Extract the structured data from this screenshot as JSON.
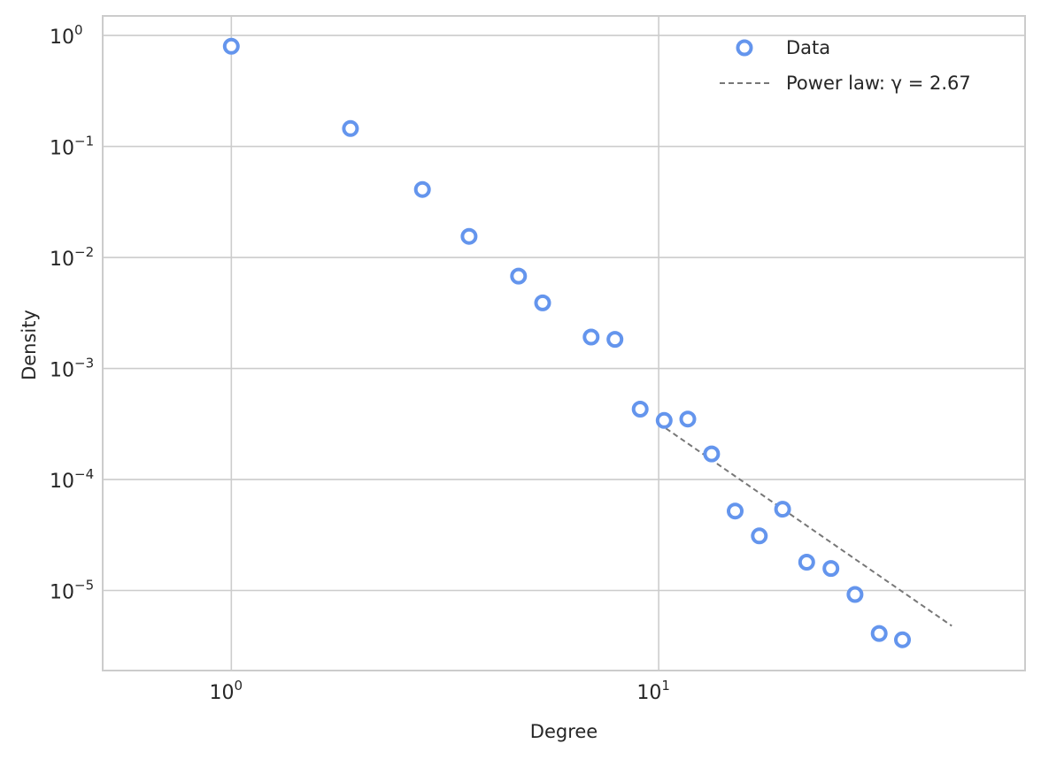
{
  "chart_data": {
    "type": "scatter",
    "title": "",
    "xlabel": "Degree",
    "ylabel": "Density",
    "xscale": "log",
    "yscale": "log",
    "xlim": [
      0.5,
      72
    ],
    "ylim": [
      1.9e-06,
      1.5
    ],
    "grid": true,
    "legend_position": "top-right",
    "x_ticks": [
      {
        "base": "10",
        "exp": "0",
        "value": 1
      },
      {
        "base": "10",
        "exp": "1",
        "value": 10
      }
    ],
    "y_ticks": [
      {
        "base": "10",
        "exp": "0",
        "value": 1
      },
      {
        "base": "10",
        "exp": "−1",
        "value": 0.1
      },
      {
        "base": "10",
        "exp": "−2",
        "value": 0.01
      },
      {
        "base": "10",
        "exp": "−3",
        "value": 0.001
      },
      {
        "base": "10",
        "exp": "−4",
        "value": 0.0001
      },
      {
        "base": "10",
        "exp": "−5",
        "value": 1e-05
      }
    ],
    "series": [
      {
        "name": "Data",
        "kind": "scatter",
        "color": "#6495ED",
        "x": [
          1,
          1.9,
          2.8,
          3.6,
          4.7,
          5.35,
          6.95,
          7.9,
          9.05,
          10.3,
          11.7,
          13.3,
          15.1,
          17.2,
          19.5,
          22.2,
          25.3,
          28.8,
          32.8,
          37.2
        ],
        "y": [
          0.8,
          0.145,
          0.041,
          0.0155,
          0.0068,
          0.0039,
          0.00192,
          0.00183,
          0.00043,
          0.00034,
          0.00035,
          0.00017,
          5.2e-05,
          3.1e-05,
          5.4e-05,
          1.8e-05,
          1.58e-05,
          9.2e-06,
          4.1e-06,
          3.6e-06
        ]
      },
      {
        "name": "Power law: γ = 2.67",
        "kind": "line",
        "color": "#777777",
        "x": [
          10,
          48.5
        ],
        "y": [
          0.00032,
          4.8e-06
        ]
      }
    ]
  }
}
